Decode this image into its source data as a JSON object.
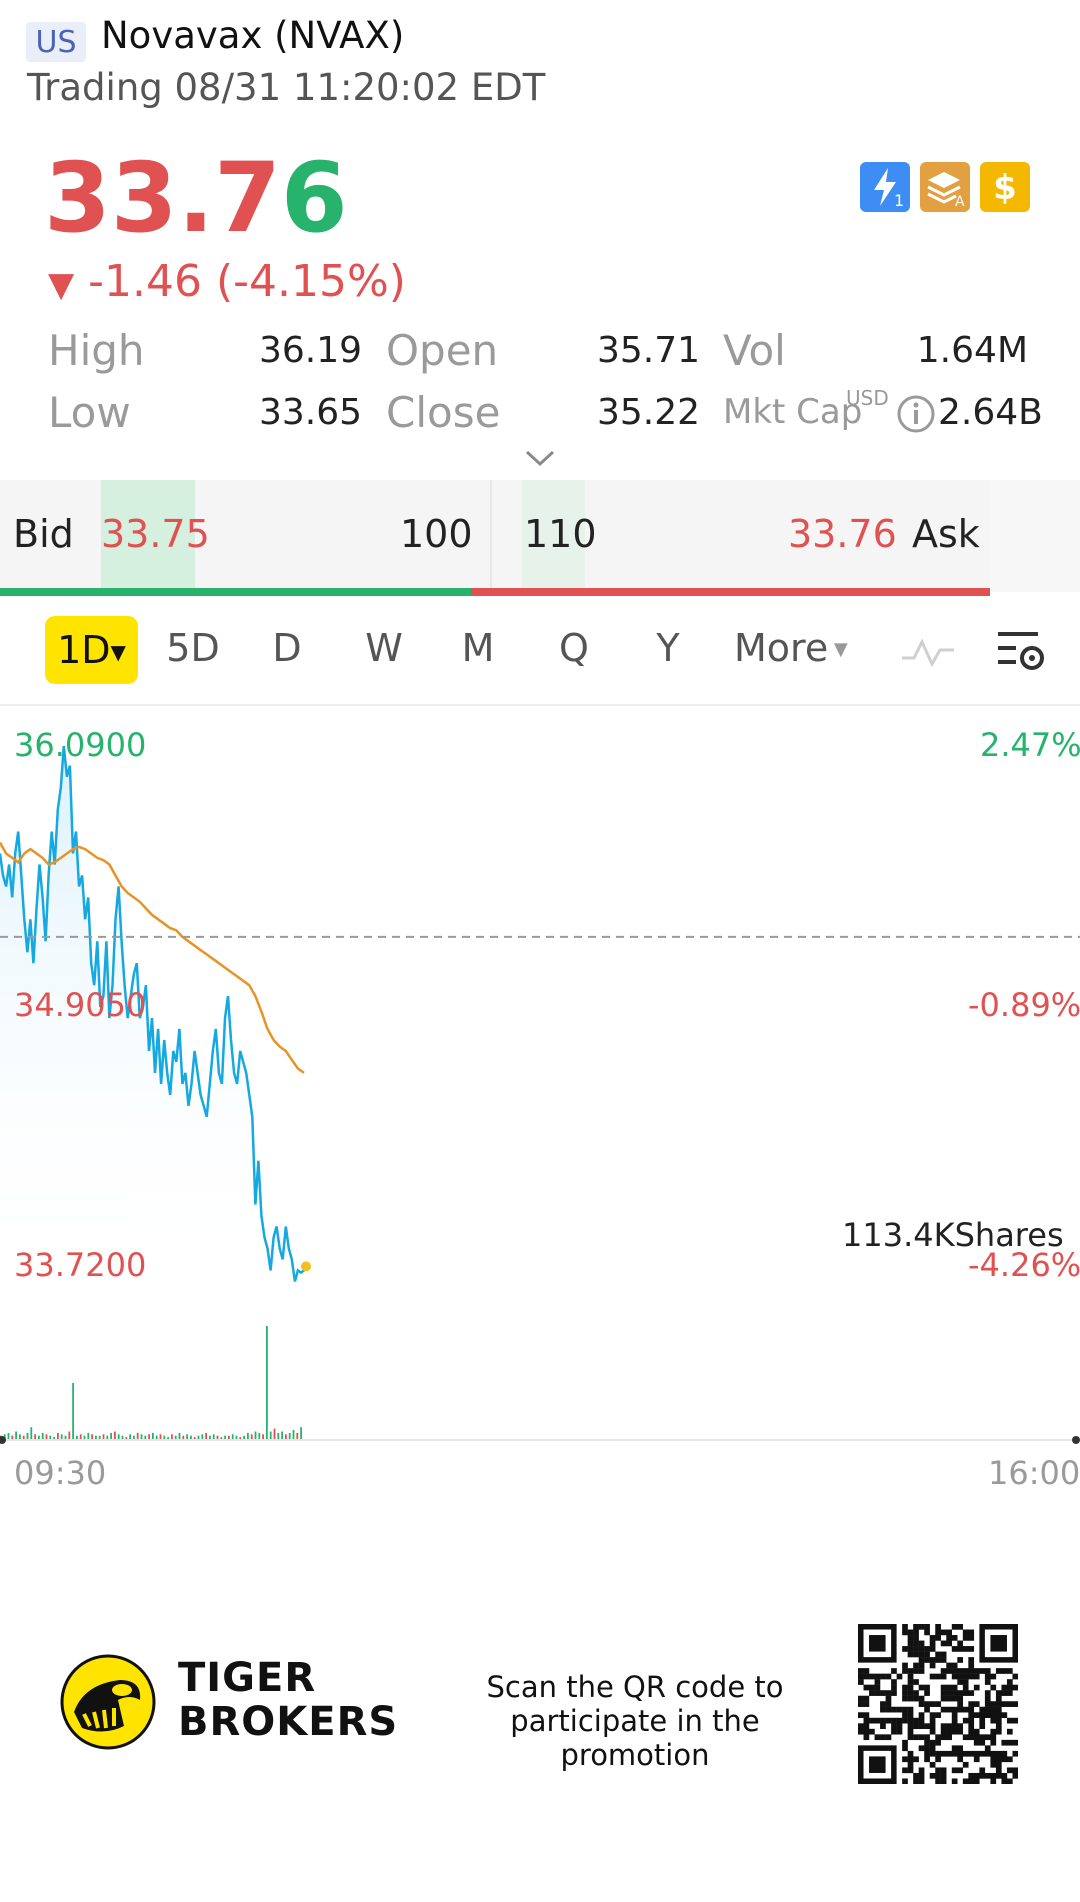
{
  "header": {
    "market": "US",
    "name": "Novavax (NVAX)",
    "status": "Trading 08/31 11:20:02 EDT"
  },
  "quote": {
    "price": "33.76",
    "price_main": "33.7",
    "price_last_digit": "6",
    "change_arrow": "▼",
    "change": "-1.46 (-4.15%)",
    "high_label": "High",
    "high": "36.19",
    "open_label": "Open",
    "open": "35.71",
    "vol_label": "Vol",
    "vol": "1.64M",
    "low_label": "Low",
    "low": "33.65",
    "close_label": "Close",
    "close": "35.22",
    "mktcap_label": "Mkt Cap",
    "mktcap_currency": "USD",
    "mktcap": "2.64B"
  },
  "badges": [
    {
      "icon": "lightning-level1-icon",
      "color": "#3d8df5"
    },
    {
      "icon": "layers-a-icon",
      "color": "#e3a040"
    },
    {
      "icon": "dollar-icon",
      "color": "#f5b800"
    }
  ],
  "bidask": {
    "bid_label": "Bid",
    "bid_price": "33.75",
    "bid_size": "100",
    "ask_size": "110",
    "ask_price": "33.76",
    "ask_label": "Ask"
  },
  "timeframes": [
    "1D",
    "5D",
    "D",
    "W",
    "M",
    "Q",
    "Y",
    "More"
  ],
  "chart_data": {
    "type": "line",
    "title": "",
    "x_labels": [
      "09:30",
      "16:00"
    ],
    "y_labels_left": [
      "36.0900",
      "34.9050",
      "33.7200"
    ],
    "y_labels_right": [
      "2.47%",
      "-0.89%",
      "-4.26%"
    ],
    "ylim": [
      33.72,
      36.09
    ],
    "reference_close": 35.22,
    "volume_label": "113.4KShares",
    "series": [
      {
        "color": "#16a8e0",
        "values": [
          35.6,
          35.5,
          35.45,
          35.55,
          35.4,
          35.6,
          35.7,
          35.5,
          35.3,
          35.15,
          35.3,
          35.1,
          35.35,
          35.55,
          35.4,
          35.2,
          35.5,
          35.7,
          35.55,
          35.8,
          35.9,
          36.09,
          35.95,
          36.0,
          35.6,
          35.7,
          35.45,
          35.5,
          35.3,
          35.4,
          35.1,
          35.0,
          35.2,
          34.9,
          34.95,
          35.2,
          34.85,
          35.0,
          35.3,
          35.45,
          35.2,
          35.0,
          34.85,
          34.95,
          35.05,
          35.1,
          34.85,
          34.9,
          35.0,
          34.7,
          34.85,
          34.6,
          34.8,
          34.55,
          34.75,
          34.6,
          34.5,
          34.7,
          34.65,
          34.8,
          34.55,
          34.6,
          34.45,
          34.55,
          34.7,
          34.6,
          34.5,
          34.45,
          34.4,
          34.55,
          34.7,
          34.8,
          34.6,
          34.55,
          34.85,
          34.95,
          34.75,
          34.6,
          34.55,
          34.7,
          34.65,
          34.6,
          34.5,
          34.4,
          34.0,
          34.2,
          33.95,
          33.85,
          33.8,
          33.7,
          33.85,
          33.9,
          33.8,
          33.75,
          33.9,
          33.8,
          33.75,
          33.65,
          33.7,
          33.69,
          33.7
        ]
      },
      {
        "color": "#e89325",
        "values": [
          35.65,
          35.6,
          35.58,
          35.56,
          35.6,
          35.62,
          35.6,
          35.58,
          35.55,
          35.56,
          35.58,
          35.6,
          35.62,
          35.63,
          35.62,
          35.6,
          35.58,
          35.57,
          35.55,
          35.5,
          35.45,
          35.42,
          35.4,
          35.38,
          35.35,
          35.32,
          35.3,
          35.28,
          35.26,
          35.25,
          35.22,
          35.2,
          35.18,
          35.16,
          35.14,
          35.12,
          35.1,
          35.08,
          35.06,
          35.04,
          35.02,
          35.0,
          34.95,
          34.88,
          34.8,
          34.75,
          34.72,
          34.7,
          34.66,
          34.62,
          34.6
        ]
      }
    ],
    "volume": [
      3,
      4,
      5,
      3,
      6,
      4,
      3,
      5,
      9,
      4,
      3,
      5,
      4,
      3,
      2,
      5,
      4,
      3,
      6,
      40,
      3,
      4,
      3,
      5,
      4,
      3,
      3,
      4,
      3,
      5,
      6,
      4,
      3,
      2,
      4,
      3,
      5,
      4,
      3,
      4,
      5,
      3,
      4,
      3,
      2,
      4,
      3,
      5,
      3,
      4,
      3,
      2,
      3,
      4,
      5,
      3,
      4,
      3,
      2,
      3,
      3,
      4,
      3,
      2,
      3,
      5,
      4,
      6,
      5,
      4,
      80,
      6,
      8,
      5,
      6,
      4,
      5,
      7,
      5,
      9
    ]
  },
  "promo": {
    "brand_line1": "TIGER",
    "brand_line2": "BROKERS",
    "text": "Scan the QR code to participate in the promotion"
  },
  "colors": {
    "up": "#27b36b",
    "down": "#e05252",
    "accent": "#ffe400"
  }
}
